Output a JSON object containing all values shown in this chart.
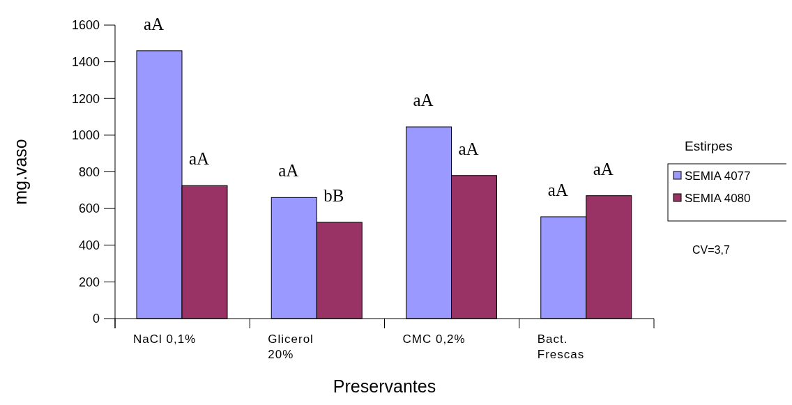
{
  "chart_data": {
    "type": "bar",
    "xlabel": "Preservantes",
    "ylabel": "mg.vaso",
    "legend_title": "Estirpes",
    "categories": [
      "NaCl 0,1%",
      "Glicerol 20%",
      "CMC 0,2%",
      "Bact. Frescas"
    ],
    "series": [
      {
        "name": "SEMIA 4077",
        "color": "#9999ff",
        "values": [
          1460,
          660,
          1045,
          555
        ]
      },
      {
        "name": "SEMIA 4080",
        "color": "#993366",
        "values": [
          725,
          525,
          780,
          670
        ]
      }
    ],
    "ylim": [
      0,
      1600
    ],
    "yticks": [
      0,
      200,
      400,
      600,
      800,
      1000,
      1200,
      1400,
      1600
    ],
    "grid": false,
    "legend": "right",
    "annotations": [
      "aA",
      "aA",
      "aA",
      "bB",
      "aA",
      "aA",
      "aA",
      "aA",
      "CV=3,7"
    ]
  }
}
